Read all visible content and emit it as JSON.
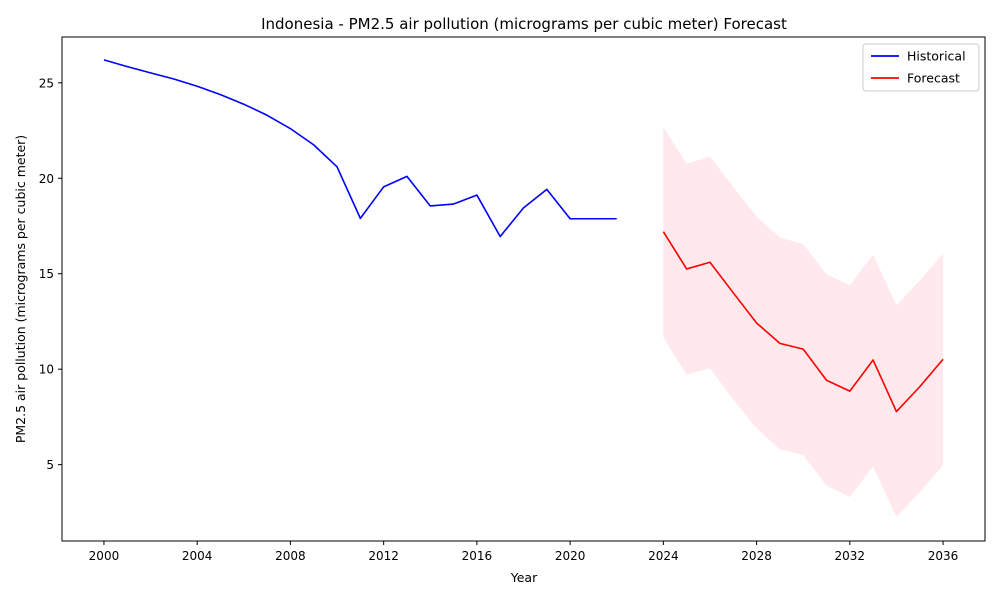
{
  "chart_data": {
    "type": "line",
    "title": "Indonesia - PM2.5 air pollution (micrograms per cubic meter) Forecast",
    "xlabel": "Year",
    "ylabel": "PM2.5 air pollution (micrograms per cubic meter)",
    "xlim": [
      1998.2,
      2037.8
    ],
    "ylim": [
      1.0,
      27.4
    ],
    "xticks": [
      2000,
      2004,
      2008,
      2012,
      2016,
      2020,
      2024,
      2028,
      2032,
      2036
    ],
    "yticks": [
      5,
      10,
      15,
      20,
      25
    ],
    "legend_position": "top-right",
    "grid": false,
    "series": [
      {
        "name": "Historical",
        "color": "#0000ff",
        "x": [
          2000,
          2001,
          2002,
          2003,
          2004,
          2005,
          2006,
          2007,
          2008,
          2009,
          2010,
          2011,
          2012,
          2013,
          2014,
          2015,
          2016,
          2017,
          2018,
          2019,
          2020,
          2021,
          2022
        ],
        "y": [
          26.2,
          25.85,
          25.52,
          25.2,
          24.82,
          24.38,
          23.88,
          23.3,
          22.6,
          21.75,
          20.6,
          17.9,
          19.55,
          20.1,
          18.55,
          18.65,
          19.12,
          16.95,
          18.45,
          19.42,
          17.88,
          17.88,
          17.88
        ]
      },
      {
        "name": "Forecast",
        "color": "#ff0000",
        "band_color": "#ffc0cb",
        "x": [
          2024,
          2025,
          2026,
          2027,
          2028,
          2029,
          2030,
          2031,
          2032,
          2033,
          2034,
          2035,
          2036
        ],
        "y": [
          17.2,
          15.25,
          15.6,
          14.0,
          12.42,
          11.35,
          11.05,
          9.42,
          8.85,
          10.48,
          7.78,
          9.08,
          10.52
        ],
        "lower": [
          11.65,
          9.7,
          10.05,
          8.4,
          6.9,
          5.8,
          5.5,
          3.9,
          3.3,
          4.9,
          2.25,
          3.55,
          4.97
        ],
        "upper": [
          22.7,
          20.75,
          21.15,
          19.55,
          18.0,
          16.9,
          16.55,
          14.97,
          14.4,
          16.0,
          13.35,
          14.65,
          16.05
        ]
      }
    ]
  }
}
